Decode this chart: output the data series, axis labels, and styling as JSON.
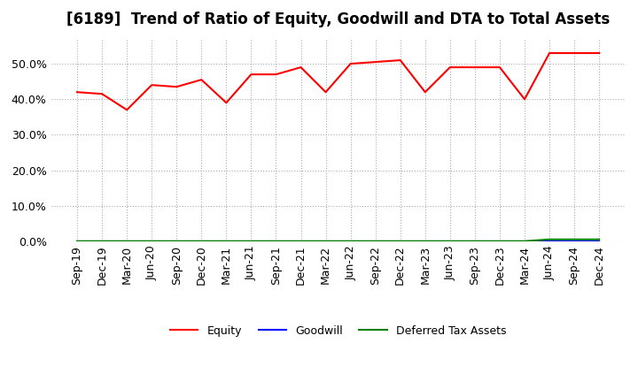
{
  "title": "[6189]  Trend of Ratio of Equity, Goodwill and DTA to Total Assets",
  "x_labels": [
    "Sep-19",
    "Dec-19",
    "Mar-20",
    "Jun-20",
    "Sep-20",
    "Dec-20",
    "Mar-21",
    "Jun-21",
    "Sep-21",
    "Dec-21",
    "Mar-22",
    "Jun-22",
    "Sep-22",
    "Dec-22",
    "Mar-23",
    "Jun-23",
    "Sep-23",
    "Dec-23",
    "Mar-24",
    "Jun-24",
    "Sep-24",
    "Dec-24"
  ],
  "equity": [
    0.42,
    0.415,
    0.37,
    0.44,
    0.435,
    0.455,
    0.39,
    0.47,
    0.47,
    0.49,
    0.42,
    0.5,
    0.505,
    0.51,
    0.42,
    0.49,
    0.49,
    0.49,
    0.4,
    0.53,
    0.53,
    0.53
  ],
  "goodwill": [
    0.0,
    0.0,
    0.0,
    0.0,
    0.0,
    0.0,
    0.0,
    0.0,
    0.0,
    0.0,
    0.0,
    0.0,
    0.0,
    0.0,
    0.0,
    0.0,
    0.0,
    0.0,
    0.0,
    0.0,
    0.0,
    0.0
  ],
  "dta": [
    0.0,
    0.0,
    0.0,
    0.0,
    0.0,
    0.0,
    0.0,
    0.0,
    0.0,
    0.0,
    0.0,
    0.0,
    0.0,
    0.0,
    0.0,
    0.0,
    0.0,
    0.0,
    0.0,
    0.005,
    0.005,
    0.005
  ],
  "equity_color": "#ff0000",
  "goodwill_color": "#0000ff",
  "dta_color": "#008000",
  "ylim": [
    0.0,
    0.57
  ],
  "yticks": [
    0.0,
    0.1,
    0.2,
    0.3,
    0.4,
    0.5
  ],
  "background_color": "#ffffff",
  "grid_color": "#aaaaaa",
  "legend_labels": [
    "Equity",
    "Goodwill",
    "Deferred Tax Assets"
  ],
  "title_fontsize": 12,
  "tick_fontsize": 9
}
